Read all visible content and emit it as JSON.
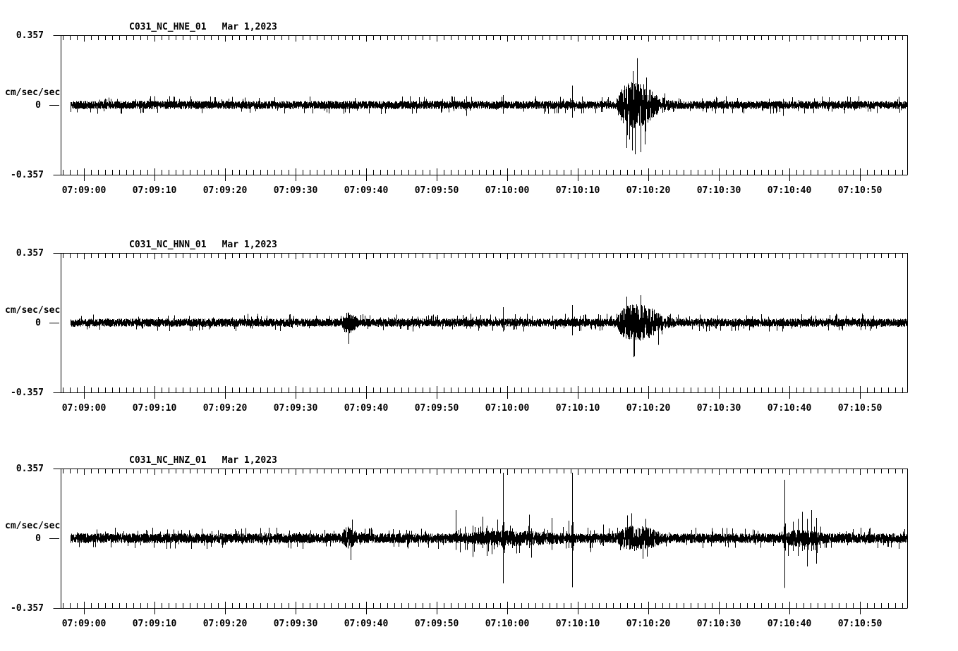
{
  "page": {
    "background": "#ffffff",
    "foreground": "#000000"
  },
  "axis": {
    "ylabel": "cm/sec/sec",
    "ytick_labels": [
      "0.357",
      "0",
      "-0.357"
    ],
    "ylim": [
      -0.357,
      0.357
    ],
    "xtick_labels": [
      "07:09:00",
      "07:09:10",
      "07:09:20",
      "07:09:30",
      "07:09:40",
      "07:09:50",
      "07:10:00",
      "07:10:10",
      "07:10:20",
      "07:10:30",
      "07:10:40",
      "07:10:50"
    ],
    "xtick_interval_sec": 10,
    "x_minor_interval_sec": 1,
    "time_unit": "seconds relative to the 07:09:00 tick"
  },
  "chart_data": [
    {
      "type": "line",
      "title": "C031_NC_HNE_01",
      "date_label": "Mar 1,2023",
      "ylabel": "cm/sec/sec",
      "ytick_labels": [
        "0.357",
        "0",
        "-0.357"
      ],
      "ylim": [
        -0.357,
        0.357
      ],
      "noise_amp": 0.021,
      "seed": 11,
      "trace_start_sec": -1.9,
      "bursts": [
        [
          75.5,
          81.9,
          0.12,
          2.5
        ]
      ],
      "spikes": [
        [
          54.2,
          0.045,
          0.055
        ],
        [
          59.4,
          0.05,
          0.045
        ],
        [
          69.2,
          0.1,
          0.065
        ],
        [
          99.1,
          0.03,
          0.055
        ]
      ]
    },
    {
      "type": "line",
      "title": "C031_NC_HNN_01",
      "date_label": "Mar 1,2023",
      "ylabel": "cm/sec/sec",
      "ytick_labels": [
        "0.357",
        "0",
        "-0.357"
      ],
      "ylim": [
        -0.357,
        0.357
      ],
      "noise_amp": 0.021,
      "seed": 22,
      "trace_start_sec": -1.9,
      "bursts": [
        [
          36.5,
          39.0,
          0.055,
          0.8
        ],
        [
          75.5,
          82.7,
          0.095,
          2.5
        ]
      ],
      "spikes": [
        [
          54.2,
          0.03,
          0.03
        ],
        [
          59.4,
          0.08,
          0.045
        ],
        [
          69.2,
          0.09,
          0.065
        ],
        [
          99.1,
          0.025,
          0.03
        ]
      ]
    },
    {
      "type": "line",
      "title": "C031_NC_HNZ_01",
      "date_label": "Mar 1,2023",
      "ylabel": "cm/sec/sec",
      "ytick_labels": [
        "0.357",
        "0",
        "-0.357"
      ],
      "ylim": [
        -0.357,
        0.357
      ],
      "noise_amp": 0.025,
      "seed": 33,
      "trace_start_sec": -1.9,
      "bursts": [
        [
          36.5,
          39.0,
          0.06,
          0.8
        ],
        [
          52.4,
          72.7,
          0.04,
          1.0
        ],
        [
          75.5,
          82.7,
          0.065,
          2.0
        ],
        [
          99.0,
          106.2,
          0.045,
          1.2
        ]
      ],
      "spikes": [
        [
          52.7,
          0.145,
          0.06
        ],
        [
          53.3,
          0.05,
          0.072
        ],
        [
          54.0,
          0.06,
          0.06
        ],
        [
          55.1,
          0.065,
          0.096
        ],
        [
          56.5,
          0.11,
          0.05
        ],
        [
          57.1,
          0.065,
          0.09
        ],
        [
          58.6,
          0.095,
          0.045
        ],
        [
          59.4,
          0.335,
          0.23
        ],
        [
          60.7,
          0.05,
          0.05
        ],
        [
          63.1,
          0.12,
          0.05
        ],
        [
          63.4,
          0.05,
          0.1
        ],
        [
          66.3,
          0.105,
          0.06
        ],
        [
          68.7,
          0.09,
          0.05
        ],
        [
          69.2,
          0.335,
          0.25
        ],
        [
          71.8,
          0.04,
          0.07
        ],
        [
          73.6,
          0.07,
          0.04
        ],
        [
          79.6,
          0.1,
          0.045
        ],
        [
          99.3,
          0.3,
          0.255
        ],
        [
          99.8,
          0.03,
          0.09
        ],
        [
          100.5,
          0.085,
          0.065
        ],
        [
          101.2,
          0.1,
          0.09
        ],
        [
          101.8,
          0.135,
          0.065
        ],
        [
          102.5,
          0.1,
          0.145
        ],
        [
          103.1,
          0.145,
          0.065
        ],
        [
          103.8,
          0.105,
          0.13
        ],
        [
          104.4,
          0.06,
          0.05
        ]
      ]
    }
  ]
}
